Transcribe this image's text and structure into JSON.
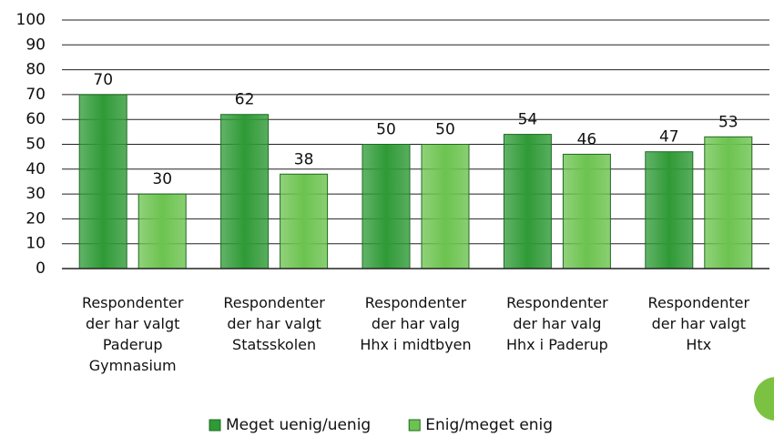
{
  "chart_data": {
    "type": "bar",
    "categories": [
      "Respondenter\nder har valgt\nPaderup\nGymnasium",
      "Respondenter\nder har valgt\nStatsskolen",
      "Respondenter\nder har valg\nHhx i midtbyen",
      "Respondenter\nder har valg\nHhx i Paderup",
      "Respondenter\nder har valgt\nHtx"
    ],
    "series": [
      {
        "name": "Meget uenig/uenig",
        "color": "#2f9a36",
        "values": [
          70,
          62,
          50,
          54,
          47
        ]
      },
      {
        "name": "Enig/meget enig",
        "color": "#6cc34f",
        "values": [
          30,
          38,
          50,
          46,
          53
        ]
      }
    ],
    "ylim": [
      0,
      100
    ],
    "yticks": [
      0,
      10,
      20,
      30,
      40,
      50,
      60,
      70,
      80,
      90,
      100
    ],
    "grid": true,
    "legend": "bottom"
  }
}
